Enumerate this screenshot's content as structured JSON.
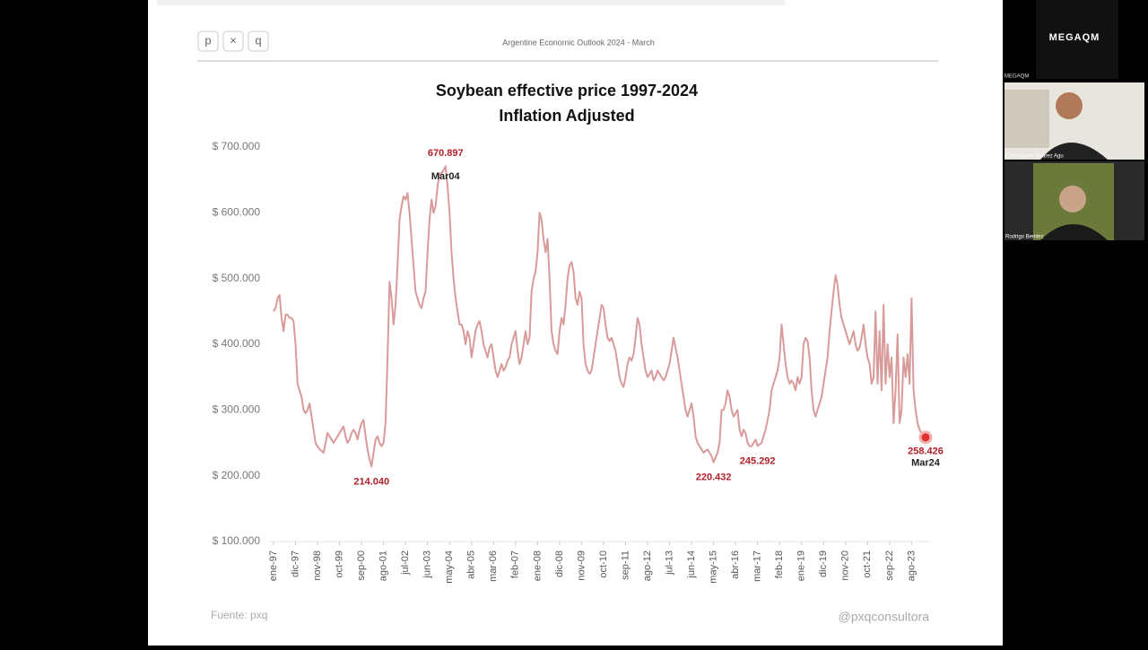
{
  "header": {
    "buttons": [
      "p",
      "×",
      "q"
    ],
    "title": "Argentine Economic Outlook 2024 - March"
  },
  "chart_data": {
    "type": "line",
    "title": [
      "Soybean effective price 1997-2024",
      "Inflation Adjusted"
    ],
    "color": "#d99a9a",
    "ylim": [
      100000,
      700000
    ],
    "yticks": [
      {
        "value": 100000,
        "label": "$ 100.000"
      },
      {
        "value": 200000,
        "label": "$ 200.000"
      },
      {
        "value": 300000,
        "label": "$ 300.000"
      },
      {
        "value": 400000,
        "label": "$ 400.000"
      },
      {
        "value": 500000,
        "label": "$ 500.000"
      },
      {
        "value": 600000,
        "label": "$ 600.000"
      },
      {
        "value": 700000,
        "label": "$ 700.000"
      }
    ],
    "categories": [
      "ene-97",
      null,
      null,
      null,
      null,
      null,
      null,
      null,
      null,
      null,
      null,
      "dic-97",
      null,
      null,
      null,
      null,
      null,
      null,
      null,
      null,
      null,
      null,
      "nov-98",
      null,
      null,
      null,
      null,
      null,
      null,
      null,
      null,
      null,
      null,
      "oct-99",
      null,
      null,
      null,
      null,
      null,
      null,
      null,
      null,
      null,
      null,
      "sep-00",
      null,
      null,
      null,
      null,
      null,
      null,
      null,
      null,
      null,
      null,
      "ago-01",
      null,
      null,
      null,
      null,
      null,
      null,
      null,
      null,
      null,
      null,
      "jul-02",
      null,
      null,
      null,
      null,
      null,
      null,
      null,
      null,
      null,
      null,
      "jun-03",
      null,
      null,
      null,
      null,
      null,
      null,
      null,
      null,
      null,
      null,
      "may-04",
      null,
      null,
      null,
      null,
      null,
      null,
      null,
      null,
      null,
      null,
      "abr-05",
      null,
      null,
      null,
      null,
      null,
      null,
      null,
      null,
      null,
      null,
      "mar-06",
      null,
      null,
      null,
      null,
      null,
      null,
      null,
      null,
      null,
      null,
      "feb-07",
      null,
      null,
      null,
      null,
      null,
      null,
      null,
      null,
      null,
      null,
      "ene-08",
      null,
      null,
      null,
      null,
      null,
      null,
      null,
      null,
      null,
      null,
      "dic-08",
      null,
      null,
      null,
      null,
      null,
      null,
      null,
      null,
      null,
      null,
      "nov-09",
      null,
      null,
      null,
      null,
      null,
      null,
      null,
      null,
      null,
      null,
      "oct-10",
      null,
      null,
      null,
      null,
      null,
      null,
      null,
      null,
      null,
      null,
      "sep-11",
      null,
      null,
      null,
      null,
      null,
      null,
      null,
      null,
      null,
      null,
      "ago-12",
      null,
      null,
      null,
      null,
      null,
      null,
      null,
      null,
      null,
      null,
      "jul-13",
      null,
      null,
      null,
      null,
      null,
      null,
      null,
      null,
      null,
      null,
      "jun-14",
      null,
      null,
      null,
      null,
      null,
      null,
      null,
      null,
      null,
      null,
      "may-15",
      null,
      null,
      null,
      null,
      null,
      null,
      null,
      null,
      null,
      null,
      "abr-16",
      null,
      null,
      null,
      null,
      null,
      null,
      null,
      null,
      null,
      null,
      "mar-17",
      null,
      null,
      null,
      null,
      null,
      null,
      null,
      null,
      null,
      null,
      "feb-18",
      null,
      null,
      null,
      null,
      null,
      null,
      null,
      null,
      null,
      null,
      "ene-19",
      null,
      null,
      null,
      null,
      null,
      null,
      null,
      null,
      null,
      null,
      "dic-19",
      null,
      null,
      null,
      null,
      null,
      null,
      null,
      null,
      null,
      null,
      "nov-20",
      null,
      null,
      null,
      null,
      null,
      null,
      null,
      null,
      null,
      null,
      "oct-21",
      null,
      null,
      null,
      null,
      null,
      null,
      null,
      null,
      null,
      null,
      "sep-22",
      null,
      null,
      null,
      null,
      null,
      null,
      null,
      null,
      null,
      null,
      "ago-23",
      null,
      null,
      null,
      null,
      null,
      null,
      null
    ],
    "values": [
      450000,
      455000,
      470000,
      475000,
      440000,
      420000,
      445000,
      445000,
      440000,
      440000,
      435000,
      400000,
      340000,
      330000,
      320000,
      300000,
      295000,
      300000,
      310000,
      290000,
      270000,
      250000,
      245000,
      240000,
      238000,
      235000,
      250000,
      265000,
      260000,
      255000,
      250000,
      255000,
      260000,
      265000,
      270000,
      275000,
      260000,
      250000,
      255000,
      265000,
      270000,
      265000,
      255000,
      270000,
      280000,
      285000,
      260000,
      240000,
      225000,
      214040,
      235000,
      255000,
      260000,
      250000,
      245000,
      250000,
      280000,
      380000,
      495000,
      470000,
      430000,
      460000,
      520000,
      590000,
      610000,
      625000,
      620000,
      630000,
      600000,
      560000,
      520000,
      480000,
      470000,
      460000,
      455000,
      470000,
      480000,
      540000,
      590000,
      620000,
      600000,
      610000,
      640000,
      660000,
      660000,
      665000,
      670897,
      640000,
      600000,
      540000,
      500000,
      470000,
      450000,
      430000,
      430000,
      420000,
      400000,
      420000,
      410000,
      380000,
      400000,
      420000,
      430000,
      435000,
      420000,
      400000,
      390000,
      380000,
      395000,
      400000,
      380000,
      360000,
      350000,
      360000,
      370000,
      360000,
      365000,
      375000,
      380000,
      400000,
      410000,
      420000,
      390000,
      370000,
      380000,
      400000,
      420000,
      400000,
      410000,
      480000,
      500000,
      510000,
      540000,
      600000,
      590000,
      560000,
      540000,
      560000,
      500000,
      420000,
      400000,
      390000,
      385000,
      420000,
      440000,
      430000,
      460000,
      500000,
      520000,
      525000,
      510000,
      470000,
      460000,
      480000,
      470000,
      400000,
      370000,
      360000,
      355000,
      360000,
      380000,
      400000,
      420000,
      440000,
      460000,
      455000,
      430000,
      410000,
      405000,
      410000,
      400000,
      390000,
      370000,
      350000,
      340000,
      335000,
      350000,
      370000,
      380000,
      375000,
      385000,
      410000,
      440000,
      430000,
      400000,
      380000,
      360000,
      350000,
      355000,
      360000,
      345000,
      350000,
      360000,
      355000,
      350000,
      345000,
      350000,
      360000,
      370000,
      390000,
      410000,
      395000,
      380000,
      360000,
      340000,
      320000,
      300000,
      290000,
      300000,
      310000,
      290000,
      260000,
      250000,
      245000,
      240000,
      235000,
      238000,
      240000,
      235000,
      230000,
      220432,
      228000,
      235000,
      250000,
      300000,
      300000,
      310000,
      330000,
      320000,
      300000,
      290000,
      295000,
      300000,
      270000,
      260000,
      270000,
      265000,
      250000,
      245000,
      245000,
      250000,
      255000,
      245292,
      248000,
      250000,
      260000,
      270000,
      285000,
      300000,
      330000,
      340000,
      350000,
      360000,
      380000,
      430000,
      400000,
      370000,
      350000,
      340000,
      345000,
      340000,
      330000,
      350000,
      340000,
      350000,
      400000,
      410000,
      405000,
      380000,
      330000,
      300000,
      290000,
      300000,
      310000,
      320000,
      340000,
      360000,
      380000,
      420000,
      450000,
      480000,
      505000,
      490000,
      460000,
      440000,
      430000,
      420000,
      410000,
      400000,
      410000,
      420000,
      400000,
      390000,
      395000,
      410000,
      430000,
      400000,
      380000,
      370000,
      340000,
      350000,
      450000,
      340000,
      420000,
      330000,
      460000,
      340000,
      400000,
      350000,
      380000,
      280000,
      330000,
      415000,
      280000,
      300000,
      380000,
      350000,
      385000,
      340000,
      470000,
      330000,
      300000,
      280000,
      270000,
      265000,
      262000,
      258426
    ],
    "annotations": [
      {
        "value": 670897,
        "label": "670.897",
        "date": "Mar04"
      },
      {
        "value": 214040,
        "label": "214.040"
      },
      {
        "value": 220432,
        "label": "220.432"
      },
      {
        "value": 245292,
        "label": "245.292"
      },
      {
        "value": 258426,
        "label": "258.426",
        "date": "Mar24"
      }
    ],
    "annotation_color": "#b3202a",
    "source": "Fuente: pxq",
    "credit": "@pxqconsultora"
  },
  "ui": {
    "logo": "MEGAQM",
    "tile_label": "MEGAQM",
    "participants": [
      "Christopher Álvarez Agu",
      "Rodrigo Benitez"
    ]
  }
}
